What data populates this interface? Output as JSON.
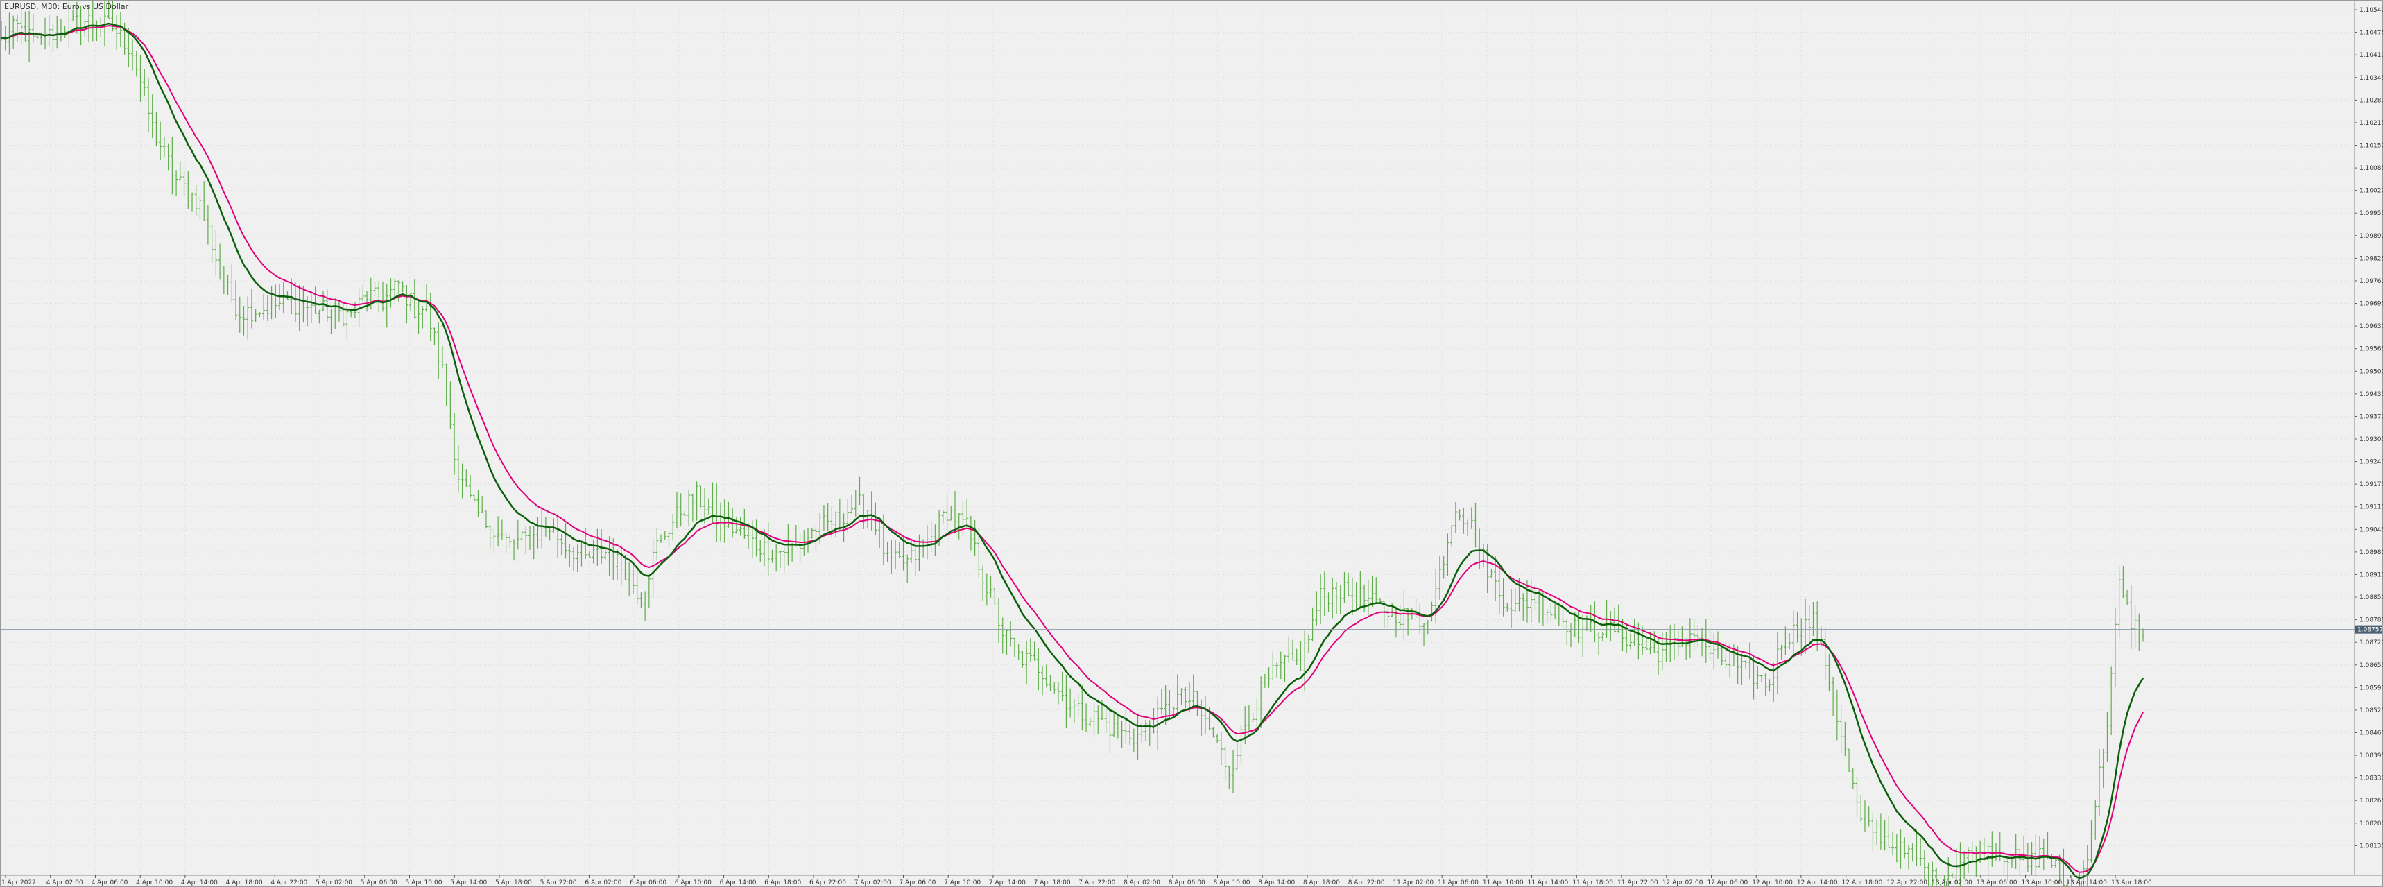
{
  "window": {
    "title": "EURUSD, M30: Euro vs US Dollar"
  },
  "colors": {
    "background": "#f0f0f0",
    "grid": "#dcdcdc",
    "bars": "#5fae4a",
    "ma_fast": "#0a5f0a",
    "ma_slow": "#e0007a",
    "current_line": "#8a9aa8",
    "current_tag": "#4a6074"
  },
  "chart_data": {
    "type": "line",
    "bar_style": "ohlc",
    "symbol": "EURUSD",
    "timeframe": "M30",
    "title": "EURUSD, M30: Euro vs US Dollar",
    "grid": true,
    "ylim": [
      1.0805,
      1.1056
    ],
    "current_price": 1.08757,
    "current_price_label": "1.08757",
    "y_ticks": [
      "1.10540",
      "1.10475",
      "1.10410",
      "1.10345",
      "1.10280",
      "1.10215",
      "1.10150",
      "1.10085",
      "1.10020",
      "1.09955",
      "1.09890",
      "1.09825",
      "1.09760",
      "1.09695",
      "1.09630",
      "1.09565",
      "1.09500",
      "1.09435",
      "1.09370",
      "1.09305",
      "1.09240",
      "1.09175",
      "1.09110",
      "1.09045",
      "1.08980",
      "1.08915",
      "1.08850",
      "1.08785",
      "1.08720",
      "1.08655",
      "1.08590",
      "1.08525",
      "1.08460",
      "1.08395",
      "1.08330",
      "1.08265",
      "1.08200",
      "1.08135"
    ],
    "x_ticks": [
      "1 Apr 2022",
      "4 Apr 02:00",
      "4 Apr 06:00",
      "4 Apr 10:00",
      "4 Apr 14:00",
      "4 Apr 18:00",
      "4 Apr 22:00",
      "5 Apr 02:00",
      "5 Apr 06:00",
      "5 Apr 10:00",
      "5 Apr 14:00",
      "5 Apr 18:00",
      "5 Apr 22:00",
      "6 Apr 02:00",
      "6 Apr 06:00",
      "6 Apr 10:00",
      "6 Apr 14:00",
      "6 Apr 18:00",
      "6 Apr 22:00",
      "7 Apr 02:00",
      "7 Apr 06:00",
      "7 Apr 10:00",
      "7 Apr 14:00",
      "7 Apr 18:00",
      "7 Apr 22:00",
      "8 Apr 02:00",
      "8 Apr 06:00",
      "8 Apr 10:00",
      "8 Apr 14:00",
      "8 Apr 18:00",
      "8 Apr 22:00",
      "11 Apr 02:00",
      "11 Apr 06:00",
      "11 Apr 10:00",
      "11 Apr 14:00",
      "11 Apr 18:00",
      "11 Apr 22:00",
      "12 Apr 02:00",
      "12 Apr 06:00",
      "12 Apr 10:00",
      "12 Apr 14:00",
      "12 Apr 18:00",
      "12 Apr 22:00",
      "13 Apr 02:00",
      "13 Apr 06:00",
      "13 Apr 10:00",
      "13 Apr 14:00",
      "13 Apr 18:00"
    ],
    "price_keypoints": [
      [
        0,
        1.1045
      ],
      [
        4,
        1.1049
      ],
      [
        9,
        1.1044
      ],
      [
        15,
        1.1049
      ],
      [
        22,
        1.1051
      ],
      [
        28,
        1.1049
      ],
      [
        33,
        1.1042
      ],
      [
        38,
        1.102
      ],
      [
        44,
        1.1005
      ],
      [
        50,
        1.0998
      ],
      [
        56,
        1.0975
      ],
      [
        60,
        1.0967
      ],
      [
        66,
        1.0968
      ],
      [
        72,
        1.097
      ],
      [
        78,
        1.0968
      ],
      [
        84,
        1.0967
      ],
      [
        88,
        1.0966
      ],
      [
        92,
        1.0972
      ],
      [
        96,
        1.097
      ],
      [
        100,
        1.0975
      ],
      [
        104,
        1.0968
      ],
      [
        107,
        1.0968
      ],
      [
        111,
        1.095
      ],
      [
        115,
        1.092
      ],
      [
        119,
        1.091
      ],
      [
        124,
        1.0904
      ],
      [
        128,
        1.09
      ],
      [
        133,
        1.0902
      ],
      [
        138,
        1.0905
      ],
      [
        142,
        1.09
      ],
      [
        147,
        1.0896
      ],
      [
        152,
        1.0898
      ],
      [
        157,
        1.0893
      ],
      [
        161,
        1.0885
      ],
      [
        165,
        1.09
      ],
      [
        171,
        1.091
      ],
      [
        175,
        1.0914
      ],
      [
        180,
        1.0908
      ],
      [
        184,
        1.0905
      ],
      [
        190,
        1.09
      ],
      [
        195,
        1.0898
      ],
      [
        201,
        1.09
      ],
      [
        205,
        1.0905
      ],
      [
        210,
        1.0907
      ],
      [
        215,
        1.0912
      ],
      [
        219,
        1.091
      ],
      [
        223,
        1.0895
      ],
      [
        228,
        1.0895
      ],
      [
        233,
        1.09
      ],
      [
        238,
        1.091
      ],
      [
        243,
        1.0905
      ],
      [
        248,
        1.0888
      ],
      [
        252,
        1.0875
      ],
      [
        256,
        1.0868
      ],
      [
        261,
        1.0865
      ],
      [
        266,
        1.0858
      ],
      [
        271,
        1.0852
      ],
      [
        276,
        1.085
      ],
      [
        281,
        1.0846
      ],
      [
        286,
        1.0845
      ],
      [
        291,
        1.085
      ],
      [
        296,
        1.0856
      ],
      [
        300,
        1.0855
      ],
      [
        305,
        1.0845
      ],
      [
        309,
        1.0835
      ],
      [
        313,
        1.0848
      ],
      [
        318,
        1.086
      ],
      [
        323,
        1.0866
      ],
      [
        327,
        1.0866
      ],
      [
        332,
        1.0885
      ],
      [
        336,
        1.0887
      ],
      [
        342,
        1.0885
      ],
      [
        347,
        1.0882
      ],
      [
        352,
        1.088
      ],
      [
        357,
        1.0878
      ],
      [
        360,
        1.0882
      ],
      [
        362,
        1.0892
      ],
      [
        366,
        1.0912
      ],
      [
        370,
        1.0905
      ],
      [
        373,
        1.0896
      ],
      [
        377,
        1.0886
      ],
      [
        381,
        1.0882
      ],
      [
        386,
        1.0885
      ],
      [
        391,
        1.088
      ],
      [
        396,
        1.0876
      ],
      [
        401,
        1.0876
      ],
      [
        406,
        1.0876
      ],
      [
        411,
        1.0872
      ],
      [
        416,
        1.0869
      ],
      [
        420,
        1.087
      ],
      [
        426,
        1.0875
      ],
      [
        431,
        1.0868
      ],
      [
        436,
        1.0865
      ],
      [
        440,
        1.0863
      ],
      [
        445,
        1.086
      ],
      [
        448,
        1.0872
      ],
      [
        452,
        1.0876
      ],
      [
        456,
        1.0878
      ],
      [
        460,
        1.0862
      ],
      [
        464,
        1.084
      ],
      [
        468,
        1.082
      ],
      [
        472,
        1.0818
      ],
      [
        477,
        1.0812
      ],
      [
        482,
        1.081
      ],
      [
        487,
        1.0802
      ],
      [
        492,
        1.0808
      ],
      [
        497,
        1.0812
      ],
      [
        502,
        1.0813
      ],
      [
        506,
        1.081
      ],
      [
        510,
        1.0808
      ],
      [
        514,
        1.0812
      ],
      [
        518,
        1.0806
      ],
      [
        522,
        1.0795
      ],
      [
        526,
        1.0818
      ],
      [
        530,
        1.085
      ],
      [
        533,
        1.0888
      ],
      [
        536,
        1.0878
      ],
      [
        539,
        1.0873
      ]
    ],
    "series": [
      {
        "values_note": "",
        "type": "ohlc"
      },
      {
        "type": "moving_average",
        "period_short": 14
      },
      {
        "type": "moving_average",
        "period_long": 21
      }
    ]
  }
}
